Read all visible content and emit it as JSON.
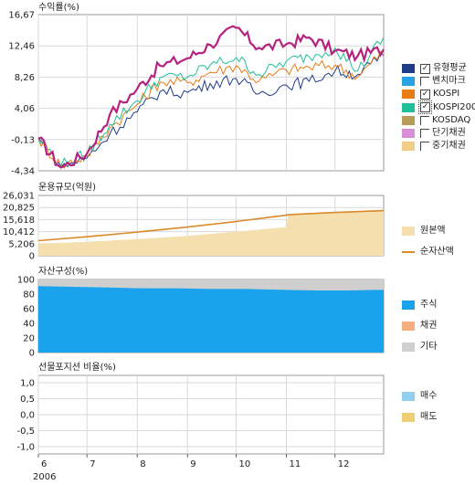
{
  "colors": {
    "fund": "#1f3c88",
    "benchmark": "#29a3e6",
    "kospi": "#e87c16",
    "kospi200": "#1fbf99",
    "kosdaq": "#b59c57",
    "short_bond": "#d990d9",
    "mid_bond": "#f2cd86",
    "principal_fill": "#f5dfae",
    "net_assets": "#d98a2a",
    "stock": "#1aa3ec",
    "bond": "#f2ae7d",
    "other": "#cfcfcf",
    "buy": "#93cfee",
    "sell": "#efcf76",
    "grid": "#d9d9d9",
    "fund_highlight": "#b5227f"
  },
  "chart_data": [
    {
      "type": "line",
      "title": "수익률(%)",
      "ylim": [
        -4.34,
        16.67
      ],
      "yticks": [
        "16,67",
        "12,46",
        "8,26",
        "4,06",
        "-0,13",
        "-4,34"
      ],
      "x": [
        "2006-06-01",
        "2006-06-15",
        "2006-07-01",
        "2006-07-15",
        "2006-08-01",
        "2006-08-15",
        "2006-09-01",
        "2006-09-15",
        "2006-10-01",
        "2006-10-15",
        "2006-11-01",
        "2006-11-15",
        "2006-12-01",
        "2006-12-15",
        "2006-12-31"
      ],
      "legend": [
        {
          "key": "fund",
          "label": "유형평균",
          "checked": true
        },
        {
          "key": "benchmark",
          "label": "벤치마크",
          "checked": false
        },
        {
          "key": "kospi",
          "label": "KOSPI",
          "checked": true
        },
        {
          "key": "kospi200",
          "label": "KOSPI200",
          "checked": true
        },
        {
          "key": "kosdaq",
          "label": "KOSDAQ",
          "checked": false
        },
        {
          "key": "short_bond",
          "label": "단기채권",
          "checked": false
        },
        {
          "key": "mid_bond",
          "label": "중기채권",
          "checked": false
        }
      ],
      "series": [
        {
          "name": "유형평균",
          "color_key": "fund_highlight",
          "values": [
            0,
            -3.9,
            -2.0,
            3.2,
            6.7,
            9.8,
            10.8,
            12.6,
            14.9,
            12.2,
            12.7,
            13.6,
            11.8,
            11.1,
            12.0
          ]
        },
        {
          "name": "KOSPI",
          "color_key": "kospi",
          "values": [
            0,
            -3.7,
            -2.3,
            1.4,
            4.6,
            7.6,
            7.5,
            8.9,
            9.8,
            7.7,
            9.2,
            9.6,
            9.9,
            8.3,
            11.8
          ]
        },
        {
          "name": "KOSPI200",
          "color_key": "kospi200",
          "values": [
            0,
            -3.6,
            -2.1,
            1.9,
            5.1,
            8.2,
            8.3,
            9.9,
            10.9,
            8.6,
            10.4,
            11.0,
            12.2,
            9.1,
            13.6
          ]
        },
        {
          "name": "벤치마크",
          "color_key": "fund",
          "values": [
            0,
            -3.8,
            -2.6,
            0.6,
            3.6,
            6.3,
            6.2,
            7.4,
            8.1,
            6.0,
            7.2,
            7.7,
            9.1,
            8.6,
            11.2
          ]
        }
      ]
    },
    {
      "type": "area",
      "title": "운용규모(억원)",
      "ylim": [
        0,
        26031
      ],
      "yticks": [
        "26,031",
        "20,825",
        "15,618",
        "10,412",
        "5,206",
        "0"
      ],
      "x": [
        "2006-06-01",
        "2006-07-01",
        "2006-08-01",
        "2006-09-01",
        "2006-10-01",
        "2006-11-01",
        "2006-11-02",
        "2006-12-01",
        "2006-12-31"
      ],
      "legend": [
        {
          "key": "principal_fill",
          "label": "원본액"
        },
        {
          "key": "net_assets",
          "label": "순자산액"
        }
      ],
      "series": [
        {
          "name": "원본액",
          "values": [
            5200,
            6000,
            7200,
            8600,
            10400,
            12300,
            17600,
            18600,
            19400
          ]
        },
        {
          "name": "순자산액",
          "values": [
            6500,
            8200,
            10200,
            12400,
            14800,
            17500,
            17700,
            18700,
            19500
          ]
        }
      ]
    },
    {
      "type": "area",
      "title": "자산구성(%)",
      "ylim": [
        0,
        100
      ],
      "yticks": [
        "100",
        "80",
        "60",
        "40",
        "20",
        "0"
      ],
      "legend": [
        {
          "key": "stock",
          "label": "주식"
        },
        {
          "key": "bond",
          "label": "채권"
        },
        {
          "key": "other",
          "label": "기타"
        }
      ],
      "series": [
        {
          "name": "주식",
          "values": [
            91,
            90,
            89,
            88,
            88,
            87,
            87,
            86,
            85,
            85,
            86
          ]
        },
        {
          "name": "채권",
          "values": [
            0,
            0,
            0,
            0,
            0,
            0,
            0,
            0,
            0,
            0,
            0
          ]
        },
        {
          "name": "기타",
          "values": [
            9,
            10,
            11,
            12,
            12,
            13,
            13,
            14,
            15,
            15,
            14
          ]
        }
      ]
    },
    {
      "type": "bar",
      "title": "선물포지션 비율(%)",
      "ylim": [
        -1.0,
        1.0
      ],
      "yticks": [
        "1,0",
        "0,5",
        "0,0",
        "-0,5",
        "-1,0"
      ],
      "legend": [
        {
          "key": "buy",
          "label": "매수"
        },
        {
          "key": "sell",
          "label": "매도"
        }
      ],
      "series": []
    }
  ],
  "x_axis": {
    "ticks": [
      "6",
      "7",
      "8",
      "9",
      "10",
      "11",
      "12"
    ],
    "year": "2006"
  }
}
